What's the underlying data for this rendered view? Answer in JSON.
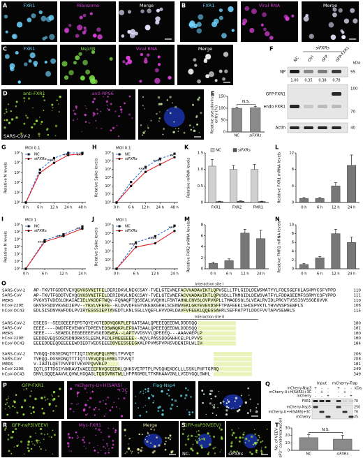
{
  "figure": {
    "A": {
      "panel": "A",
      "labels": [
        "FXR1",
        "Ribosome",
        "Merge"
      ]
    },
    "B": {
      "panel": "B",
      "labels": [
        "FXR1",
        "Viral RNA",
        "Merge"
      ]
    },
    "C": {
      "panel": "C",
      "labels": [
        "FXR1",
        "Nsp3N",
        "Viral RNA",
        "Merge"
      ]
    },
    "D": {
      "panel": "D",
      "labels": [
        "anti-FXR1",
        "anti-RPS6"
      ],
      "note": "SARS-CoV-2"
    },
    "F": {
      "panel": "F",
      "group": "siFXRs",
      "lanes": [
        "NC",
        "Ctrl",
        "GFP",
        "GFP-FXR1"
      ],
      "unit": "kDa",
      "rows": [
        "NP",
        "GFP-FXR1",
        "endo FXR1",
        "Actin"
      ],
      "quant": [
        "1.00",
        "0.35",
        "0.38",
        "0.78"
      ],
      "markers": [
        "55",
        "100",
        "70",
        "40"
      ]
    },
    "O": {
      "panel": "O",
      "sites": [
        "Interaction site I",
        "Interaction site II"
      ],
      "blocks": [
        [
          {
            "name": "SARS-CoV-2",
            "seq": "AP-TKVTFGDDTVEVQGYKSVNITFELDERIDKVLNEKCSAY-TVELGTEVNEFACVVADAVIKTLQPVSELLTPLGIDLDEWSMATYYLFDESGEFKLASHMYCSFYPPD",
            "end": "110"
          },
          {
            "name": "SARS-CoV",
            "seq": "AP-TKVTFGDDTVEVQGYKSVNITFELDERIDKVLNEKCSAY-TVELGTEVNEFACVVADAVIKTLQPVSDLLTNMGIDLDEWSVATFYLFDDAGEEMFSSRMYCSFYPPD",
            "end": "111"
          },
          {
            "name": "MERS",
            "seq": "PVGVSTVDEGLDKAIAEIELVKDDFTWQV-FQNAQPTQSSEALVVQHHLFSNTAHNLCNVSLGVPVKPLLTMAGDSGLSLVEALRVIDLPRCVTVSSISVSSGEGVVK",
            "end": "110"
          },
          {
            "name": "hCoV-229E",
            "seq": "GKVSFSDDVKVEDIEPV--YKVLVFEFE--KLDVVDFEGTVKEAKGKHLSCENWVEKLGKYEVEVDSFFTPAFEEKLSHCEPVKTLYHVVNSPSEWPLS",
            "end": "106"
          },
          {
            "name": "hCoV-OC43",
            "seq": "EDLSISDNVKWFDDLPVIRYEGSSIEPTAVEDTLKNLSGLLVQEFLHVVDRLDAVFVFEEKLQQEGSAHRLSEFPATPTLDDCFVVTAPVSEWHLS",
            "end": "115"
          }
        ],
        [
          {
            "name": "SARS-CoV-2",
            "seq": "ESEEG--SEEGEEEFEPSTQYEYGTEDDYQGKPLEFGATSAALQPEEEQEEDWLDDDSQQ",
            "end": "180"
          },
          {
            "name": "SARS-CoV",
            "seq": "EEEE----DWDTFEVENKVTDPEEVEDSWNQKPLEFGATSAALQPEEEQEEDWLDDDSQQ",
            "end": "181"
          },
          {
            "name": "MERS",
            "seq": "SEEE----SEAEDLEEGEEEEEVSGEDEWEA--LAPTVVDSVVLQPEEEQ---AAAVAEPLP",
            "end": "180"
          },
          {
            "name": "hCoV-229E",
            "seq": "EEDDEVEQSDSDSDNDRKSSLEENLPEDLFNEEEEEE--AQVLPASSDDGNHHCELPLPVVS",
            "end": "180"
          },
          {
            "name": "hCoV-OC43",
            "seq": "EEEEDDEEQDEEEEEWDIEDTVEDSEEEDDVEESSEEGKALPPVMSPVPHSVDENIRLWLIH",
            "end": "184"
          }
        ],
        [
          {
            "name": "SARS-CoV-2",
            "seq": "TVGQQ-DGSEDNQTTTIQTIVEVQPQLEMELTPVVQT",
            "end": "206"
          },
          {
            "name": "SARS-CoV",
            "seq": "TVEQQ-DGSEDNQTTTIQTIVEVQPQLEMELTPVVQT",
            "end": "208"
          },
          {
            "name": "MERS",
            "seq": "V-IADTLQETPVVPDTVEVPPQVVKLP",
            "end": "181"
          },
          {
            "name": "hCoV-229E",
            "seq": "IQTLGTTDGIYVWKAVIVAEEEEFNVQCEEDKLQHKSVETPTPLPVSQHEKDCLLLSSKLPHFTGPRQ",
            "end": "249"
          },
          {
            "name": "hCoV-OC43",
            "seq": "DNVLGQQEAAVVLQVWLKGQAGLTQGSVRKTWLLHFPRGMDLTTKRKAAVGNLLVCDYGQLSWHL",
            "end": "349"
          }
        ]
      ]
    },
    "P": {
      "panel": "P",
      "labels": [
        "GFP-FXR1",
        "mCherry-U+H(SARS)",
        "Flag-Nsp4"
      ],
      "label2": "+3C"
    },
    "Q": {
      "panel": "Q",
      "groups": [
        "Input",
        "mCherry-Trap"
      ],
      "conditions": [
        "mCherry-Nsp3",
        "mCherry-U+H(SARS)+3C",
        "mCherry"
      ],
      "signs": [
        [
          "+",
          "-",
          "-",
          "+",
          "-",
          "-"
        ],
        [
          "-",
          "+",
          "-",
          "-",
          "+",
          "-"
        ],
        [
          "-",
          "-",
          "+",
          "-",
          "-",
          "+"
        ]
      ],
      "unit": "kDa",
      "rows": [
        "FXR1",
        "mCherry-Nsp3",
        "mCherry-U+H(SARS)+3C",
        "mCherry"
      ],
      "markers": [
        "70",
        "250",
        "70",
        "25"
      ]
    },
    "R": {
      "panel": "R",
      "labels": [
        "GFP-nsP3(VEEV)",
        "Myc-FXR1",
        "Merge"
      ]
    },
    "S": {
      "panel": "S",
      "labels": [
        "GFP-nsP3(VEEV)"
      ],
      "conditions": [
        "NC",
        "siFXRs"
      ]
    }
  },
  "chart_data": [
    {
      "panel": "E",
      "type": "bar",
      "ylabel": [
        "Relative pseudovirus",
        "entry (%)"
      ],
      "categories": [
        "NC",
        "siFXRs"
      ],
      "series": [
        {
          "color": "#8a8a8a",
          "values": [
            100,
            102
          ],
          "errors": [
            5,
            5
          ]
        }
      ],
      "ylim": [
        0,
        150
      ],
      "yticks": [
        0,
        50,
        100,
        150
      ],
      "annotation": "N.S."
    },
    {
      "panel": "G",
      "type": "line",
      "title": "MOI 0.1",
      "ylabel": "Relative N levels",
      "log_y": true,
      "categories": [
        "0 h",
        "6 h",
        "12 h",
        "24 h",
        "48 h"
      ],
      "series": [
        {
          "name": "NC",
          "color": "#2f6fd6",
          "line_style": "dashed",
          "marker": "square",
          "values": [
            1,
            2000,
            30000,
            100000,
            100000
          ]
        },
        {
          "name": "siFXRs",
          "color": "#e0202a",
          "line_style": "solid",
          "marker": "circle",
          "values": [
            1,
            1000,
            10000,
            60000,
            80000
          ]
        }
      ],
      "ylim": [
        1,
        100000
      ],
      "yticks": [
        {
          "value": 1,
          "label": "10⁰"
        },
        {
          "value": 10,
          "label": "10¹"
        },
        {
          "value": 100,
          "label": "10²"
        },
        {
          "value": 1000,
          "label": "10³"
        },
        {
          "value": 10000,
          "label": "10⁴"
        },
        {
          "value": 100000,
          "label": "10⁵"
        }
      ],
      "annotations": [
        {
          "text": "****",
          "at": "12 h"
        },
        {
          "text": "**",
          "at": "24 h"
        },
        {
          "text": "***",
          "at": "48 h"
        }
      ]
    },
    {
      "panel": "H",
      "type": "line",
      "title": "MOI 0.1",
      "ylabel": "Relative Spike levels",
      "log_y": true,
      "categories": [
        "0 h",
        "6 h",
        "12 h",
        "24 h",
        "48 h"
      ],
      "series": [
        {
          "name": "NC",
          "color": "#2f6fd6",
          "line_style": "dashed",
          "marker": "square",
          "values": [
            1,
            300,
            20000,
            200000,
            800000
          ]
        },
        {
          "name": "siFXRs",
          "color": "#e0202a",
          "line_style": "solid",
          "marker": "circle",
          "values": [
            1,
            100,
            5000,
            40000,
            300000
          ]
        }
      ],
      "ylim": [
        1,
        1000000
      ],
      "yticks": [
        {
          "value": 1,
          "label": "10⁰"
        },
        {
          "value": 10,
          "label": "10¹"
        },
        {
          "value": 100,
          "label": "10²"
        },
        {
          "value": 1000,
          "label": "10³"
        },
        {
          "value": 10000,
          "label": "10⁴"
        },
        {
          "value": 100000,
          "label": "10⁵"
        },
        {
          "value": 1000000,
          "label": "10⁶"
        }
      ],
      "annotations": [
        {
          "text": "****",
          "at": "12 h"
        },
        {
          "text": "****",
          "at": "24 h"
        },
        {
          "text": "**",
          "at": "48 h"
        }
      ]
    },
    {
      "panel": "K",
      "type": "bar",
      "ylabel": "Relative mRNA levels",
      "categories": [
        "FXR1",
        "FXR2",
        "FMR1"
      ],
      "legend": true,
      "series": [
        {
          "name": "NC",
          "color": "#d0d0d0",
          "values": [
            1.1,
            1.0,
            1.0
          ],
          "errors": [
            0.2,
            0.12,
            0.15
          ]
        },
        {
          "name": "siFXRs",
          "color": "#555555",
          "values": [
            0.03,
            0.04,
            0.03
          ],
          "errors": [
            0.01,
            0.01,
            0.01
          ]
        }
      ],
      "ylim": [
        0,
        1.5
      ],
      "yticks": [
        0,
        0.5,
        {
          "value": 1,
          "label": "1.0"
        },
        1.5
      ]
    },
    {
      "panel": "L",
      "type": "bar",
      "ylabel": "Relative FXR1 mRNA levels",
      "categories": [
        "0 h",
        "6 h",
        "12 h",
        "24 h"
      ],
      "series": [
        {
          "color": "#777777",
          "values": [
            1,
            1,
            4,
            9
          ],
          "errors": [
            0.2,
            0.2,
            0.8,
            2.5
          ]
        }
      ],
      "ylim": [
        0,
        12
      ],
      "yticks": [
        0,
        4,
        8,
        12
      ]
    },
    {
      "panel": "I",
      "type": "line",
      "title": "MOI 1",
      "ylabel": "Relative N levels",
      "log_y": true,
      "categories": [
        "0 h",
        "6 h",
        "12 h",
        "24 h"
      ],
      "series": [
        {
          "name": "NC",
          "color": "#2f6fd6",
          "line_style": "dashed",
          "marker": "square",
          "values": [
            1,
            8000,
            50000,
            600000
          ]
        },
        {
          "name": "siFXRs",
          "color": "#e0202a",
          "line_style": "solid",
          "marker": "circle",
          "values": [
            1,
            5000,
            30000,
            300000
          ]
        }
      ],
      "ylim": [
        1,
        1000000
      ],
      "yticks": [
        {
          "value": 1,
          "label": "10⁰"
        },
        {
          "value": 10,
          "label": "10¹"
        },
        {
          "value": 100,
          "label": "10²"
        },
        {
          "value": 1000,
          "label": "10³"
        },
        {
          "value": 10000,
          "label": "10⁴"
        },
        {
          "value": 100000,
          "label": "10⁵"
        },
        {
          "value": 1000000,
          "label": "10⁶"
        }
      ],
      "annotations": [
        {
          "text": "****",
          "at": "6 h"
        },
        {
          "text": "****",
          "at": "12 h"
        },
        {
          "text": "***",
          "at": "24 h"
        }
      ]
    },
    {
      "panel": "J",
      "type": "line",
      "title": "MOI 1",
      "ylabel": "Relative Spike levels",
      "log_y": true,
      "categories": [
        "0 h",
        "6 h",
        "12 h",
        "24 h"
      ],
      "series": [
        {
          "name": "NC",
          "color": "#2f6fd6",
          "line_style": "dashed",
          "marker": "square",
          "values": [
            1,
            1000,
            5000,
            80000
          ]
        },
        {
          "name": "siFXRs",
          "color": "#e0202a",
          "line_style": "solid",
          "marker": "circle",
          "values": [
            1,
            300,
            800,
            20000
          ]
        }
      ],
      "ylim": [
        1,
        100000
      ],
      "yticks": [
        {
          "value": 1,
          "label": "10⁰"
        },
        {
          "value": 10,
          "label": "10¹"
        },
        {
          "value": 100,
          "label": "10²"
        },
        {
          "value": 1000,
          "label": "10³"
        },
        {
          "value": 10000,
          "label": "10⁴"
        },
        {
          "value": 100000,
          "label": "10⁵"
        }
      ],
      "annotations": [
        {
          "text": "****",
          "at": "6 h"
        },
        {
          "text": "****",
          "at": "12 h"
        },
        {
          "text": "***",
          "at": "24 h"
        }
      ]
    },
    {
      "panel": "M",
      "type": "bar",
      "ylabel": "Relative FXR2 mRNA levels",
      "categories": [
        "0 h",
        "6 h",
        "12 h",
        "24 h"
      ],
      "series": [
        {
          "color": "#777777",
          "values": [
            1,
            1.5,
            6.5,
            5.5
          ],
          "errors": [
            0.2,
            0.3,
            0.7,
            1.5
          ]
        }
      ],
      "ylim": [
        0,
        8
      ],
      "yticks": [
        0,
        2,
        4,
        6,
        8
      ]
    },
    {
      "panel": "N",
      "type": "bar",
      "ylabel": "Relative FMR1 mRNA levels",
      "categories": [
        "0 h",
        "6 h",
        "12 h",
        "24 h"
      ],
      "series": [
        {
          "color": "#777777",
          "values": [
            1,
            2.5,
            8,
            6
          ],
          "errors": [
            0.2,
            0.3,
            1,
            1.2
          ]
        }
      ],
      "ylim": [
        0,
        10
      ],
      "yticks": [
        0,
        2,
        4,
        6,
        8,
        10
      ]
    },
    {
      "panel": "T",
      "type": "bar",
      "ylabel": [
        "No. of VEEV",
        "nsP3⁺ condensate/cell"
      ],
      "categories": [
        "NC",
        "siFXRs"
      ],
      "series": [
        {
          "color": "#8a8a8a",
          "values": [
            17,
            15
          ],
          "errors": [
            4,
            5
          ]
        }
      ],
      "ylim": [
        0,
        30
      ],
      "yticks": [
        0,
        10,
        20,
        30
      ],
      "annotation": "N.S."
    }
  ]
}
